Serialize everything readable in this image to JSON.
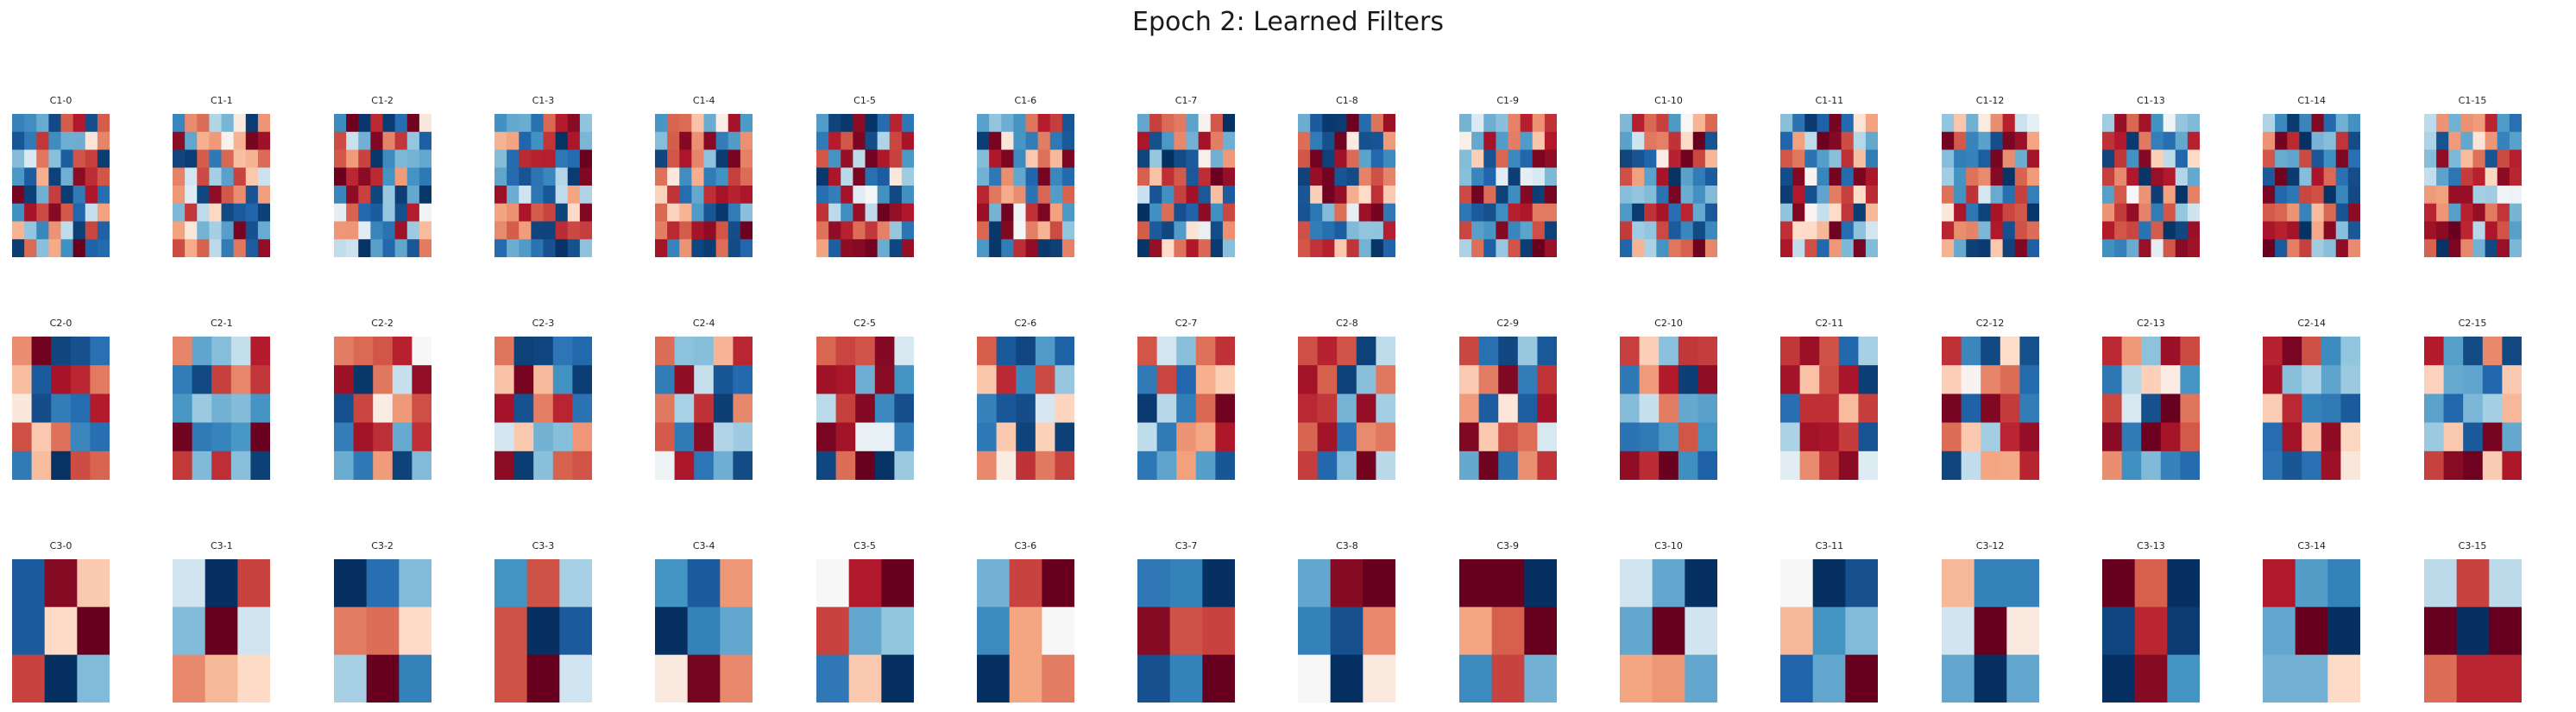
{
  "title": "Epoch 2: Learned Filters",
  "chart_data": {
    "type": "heatmap",
    "colormap": "RdBu_r (diverging: dark blue = negative, white = zero, dark red = positive)",
    "value_range": [
      -1,
      1
    ],
    "axes": "off",
    "rows": [
      {
        "layer": "C1",
        "grid": [
          8,
          8
        ],
        "labels": [
          "C1-0",
          "C1-1",
          "C1-2",
          "C1-3",
          "C1-4",
          "C1-5",
          "C1-6",
          "C1-7",
          "C1-8",
          "C1-9",
          "C1-10",
          "C1-11",
          "C1-12",
          "C1-13",
          "C1-14",
          "C1-15"
        ]
      },
      {
        "layer": "C2",
        "grid": [
          5,
          5
        ],
        "labels": [
          "C2-0",
          "C2-1",
          "C2-2",
          "C2-3",
          "C2-4",
          "C2-5",
          "C2-6",
          "C2-7",
          "C2-8",
          "C2-9",
          "C2-10",
          "C2-11",
          "C2-12",
          "C2-13",
          "C2-14",
          "C2-15"
        ]
      },
      {
        "layer": "C3",
        "grid": [
          3,
          3
        ],
        "labels": [
          "C3-0",
          "C3-1",
          "C3-2",
          "C3-3",
          "C3-4",
          "C3-5",
          "C3-6",
          "C3-7",
          "C3-8",
          "C3-9",
          "C3-10",
          "C3-11",
          "C3-12",
          "C3-13",
          "C3-14",
          "C3-15"
        ],
        "values": [
          [
            [
              -0.8,
              0.9,
              0.15
            ],
            [
              -0.8,
              0.1,
              1.0
            ],
            [
              0.6,
              -1.0,
              -0.3
            ]
          ],
          [
            [
              -0.1,
              -1.0,
              0.6
            ],
            [
              -0.3,
              1.0,
              -0.1
            ],
            [
              0.35,
              0.2,
              0.1
            ]
          ],
          [
            [
              -1.0,
              -0.7,
              -0.3
            ],
            [
              0.4,
              0.45,
              0.1
            ],
            [
              -0.2,
              1.0,
              -0.6
            ]
          ],
          [
            [
              -0.5,
              0.55,
              -0.2
            ],
            [
              0.55,
              -1.0,
              -0.8
            ],
            [
              0.55,
              1.0,
              -0.1
            ]
          ],
          [
            [
              -0.5,
              -0.8,
              0.3
            ],
            [
              -1.0,
              -0.6,
              -0.4
            ],
            [
              0.05,
              0.95,
              0.35
            ]
          ],
          [
            [
              0.0,
              0.75,
              1.0
            ],
            [
              0.6,
              -0.4,
              -0.25
            ],
            [
              -0.65,
              0.15,
              -1.0
            ]
          ],
          [
            [
              -0.35,
              0.6,
              1.0
            ],
            [
              -0.55,
              0.25,
              0.0
            ],
            [
              -1.0,
              0.25,
              0.4
            ]
          ],
          [
            [
              -0.65,
              -0.6,
              -1.0
            ],
            [
              0.9,
              0.55,
              0.6
            ],
            [
              -0.85,
              -0.6,
              1.0
            ]
          ],
          [
            [
              -0.4,
              0.9,
              1.0
            ],
            [
              -0.6,
              -0.85,
              0.35
            ],
            [
              0.0,
              -1.0,
              0.05
            ]
          ],
          [
            [
              1.0,
              1.0,
              -1.0
            ],
            [
              0.25,
              0.5,
              1.0
            ],
            [
              -0.55,
              0.6,
              -0.35
            ]
          ],
          [
            [
              -0.1,
              -0.4,
              -1.0
            ],
            [
              -0.4,
              1.0,
              -0.1
            ],
            [
              0.25,
              0.3,
              -0.4
            ]
          ],
          [
            [
              0.0,
              -1.0,
              -0.85
            ],
            [
              0.2,
              -0.5,
              -0.3
            ],
            [
              -0.75,
              -0.4,
              1.0
            ]
          ],
          [
            [
              0.2,
              -0.6,
              -0.6
            ],
            [
              -0.1,
              1.0,
              0.05
            ],
            [
              -0.4,
              -1.0,
              -0.4
            ]
          ],
          [
            [
              1.0,
              0.5,
              -1.0
            ],
            [
              -0.9,
              0.7,
              -0.95
            ],
            [
              -1.0,
              0.9,
              -0.5
            ]
          ],
          [
            [
              0.75,
              -0.45,
              -0.6
            ],
            [
              -0.4,
              1.0,
              -1.0
            ],
            [
              -0.35,
              -0.35,
              0.1
            ]
          ],
          [
            [
              -0.15,
              0.6,
              -0.15
            ],
            [
              1.0,
              -1.0,
              1.0
            ],
            [
              0.45,
              0.7,
              0.7
            ]
          ]
        ]
      }
    ]
  }
}
